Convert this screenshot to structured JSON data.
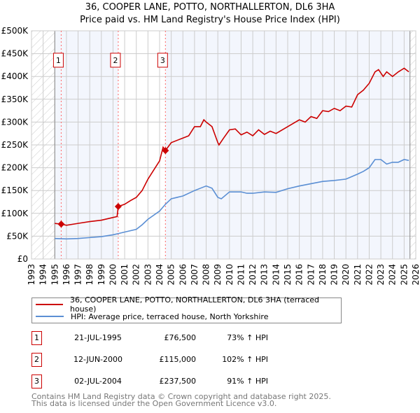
{
  "chart_data": {
    "type": "line",
    "title": "36, COOPER LANE, POTTO, NORTHALLERTON, DL6 3HA",
    "subtitle": "Price paid vs. HM Land Registry's House Price Index (HPI)",
    "xlim": [
      1993,
      2026
    ],
    "ylim": [
      0,
      500000
    ],
    "x_ticks": [
      "1993",
      "1994",
      "1995",
      "1996",
      "1997",
      "1998",
      "1999",
      "2000",
      "2001",
      "2002",
      "2003",
      "2004",
      "2005",
      "2006",
      "2007",
      "2008",
      "2009",
      "2010",
      "2011",
      "2012",
      "2013",
      "2014",
      "2015",
      "2016",
      "2017",
      "2018",
      "2019",
      "2020",
      "2021",
      "2022",
      "2023",
      "2024",
      "2025",
      "2026"
    ],
    "y_ticks": [
      "£0",
      "£50K",
      "£100K",
      "£150K",
      "£200K",
      "£250K",
      "£300K",
      "£350K",
      "£400K",
      "£450K",
      "£500K"
    ],
    "grid": true,
    "series": [
      {
        "name": "36, COOPER LANE, POTTO, NORTHALLERTON, DL6 3HA (terraced house)",
        "color": "#cc0000",
        "x": [
          1995.0,
          1995.55,
          1996,
          1997,
          1998,
          1999,
          2000,
          2000.35,
          2000.45,
          2001,
          2001.5,
          2002,
          2002.5,
          2003,
          2003.5,
          2004,
          2004.3,
          2004.5,
          2005,
          2006,
          2006.5,
          2007,
          2007.5,
          2007.8,
          2008,
          2008.5,
          2009,
          2009.1,
          2009.5,
          2010,
          2010.5,
          2011,
          2011.5,
          2012,
          2012.5,
          2013,
          2013.5,
          2014,
          2015,
          2016,
          2016.5,
          2017,
          2017.5,
          2018,
          2018.5,
          2019,
          2019.5,
          2020,
          2020.5,
          2021,
          2021.5,
          2022,
          2022.5,
          2022.8,
          2023.2,
          2023.5,
          2024,
          2024.5,
          2025,
          2025.4
        ],
        "y": [
          78000,
          76500,
          74000,
          78000,
          82000,
          85000,
          91000,
          93000,
          115000,
          120000,
          128000,
          135000,
          150000,
          175000,
          195000,
          215000,
          245000,
          237500,
          255000,
          265000,
          270000,
          290000,
          290000,
          305000,
          300000,
          290000,
          255000,
          250000,
          265000,
          283000,
          285000,
          272000,
          278000,
          270000,
          283000,
          273000,
          280000,
          275000,
          290000,
          305000,
          300000,
          312000,
          308000,
          325000,
          323000,
          330000,
          325000,
          335000,
          333000,
          360000,
          370000,
          385000,
          410000,
          415000,
          400000,
          410000,
          400000,
          410000,
          418000,
          410000
        ]
      },
      {
        "name": "HPI: Average price, terraced house, North Yorkshire",
        "color": "#5b8fd4",
        "x": [
          1995,
          1996,
          1997,
          1998,
          1999,
          2000,
          2000.5,
          2001,
          2002,
          2002.5,
          2003,
          2004,
          2004.5,
          2005,
          2006,
          2007,
          2007.5,
          2008,
          2008.5,
          2009,
          2009.3,
          2010,
          2011,
          2011.5,
          2012,
          2013,
          2014,
          2015,
          2016,
          2017,
          2018,
          2019,
          2020,
          2021,
          2021.5,
          2022,
          2022.5,
          2023,
          2023.5,
          2024,
          2024.5,
          2025,
          2025.4
        ],
        "y": [
          45000,
          44000,
          45000,
          47000,
          49000,
          53000,
          56000,
          59000,
          65000,
          75000,
          87000,
          105000,
          120000,
          132000,
          138000,
          150000,
          155000,
          160000,
          155000,
          135000,
          132000,
          147000,
          147000,
          144000,
          144000,
          147000,
          146000,
          154000,
          160000,
          165000,
          170000,
          172000,
          175000,
          186000,
          192000,
          200000,
          218000,
          218000,
          208000,
          212000,
          212000,
          218000,
          216000
        ]
      }
    ],
    "sales": [
      {
        "label": "1",
        "date": "21-JUL-1995",
        "x": 1995.55,
        "price": "£76,500",
        "value": 76500,
        "hpi": "73% ↑ HPI"
      },
      {
        "label": "2",
        "date": "12-JUN-2000",
        "x": 2000.45,
        "price": "£115,000",
        "value": 115000,
        "hpi": "102% ↑ HPI"
      },
      {
        "label": "3",
        "date": "02-JUL-2004",
        "x": 2004.5,
        "price": "£237,500",
        "value": 237500,
        "hpi": "91% ↑ HPI"
      }
    ],
    "legend_placement": "bottom"
  },
  "footer": {
    "line1": "Contains HM Land Registry data © Crown copyright and database right 2025.",
    "line2": "This data is licensed under the Open Government Licence v3.0."
  }
}
